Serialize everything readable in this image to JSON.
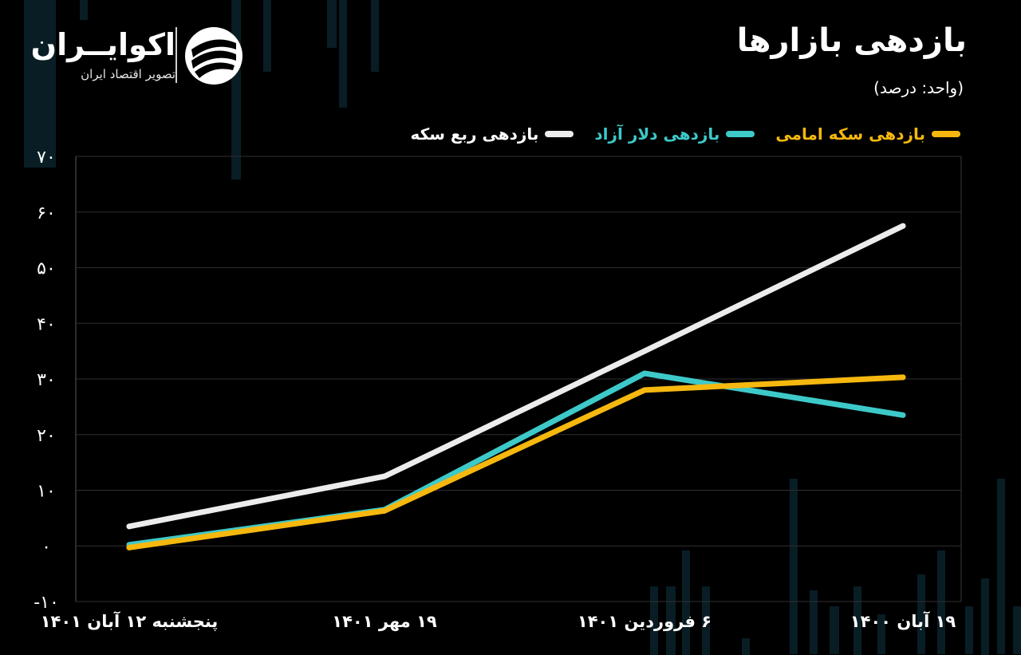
{
  "header": {
    "title": "بازدهی بازارها",
    "unit": "(واحد: درصد)"
  },
  "brand": {
    "name": "اکوایــران",
    "tagline": "تصویر اقتصاد ایران",
    "logo_icon": "ecoiran-logo-icon"
  },
  "colors": {
    "background": "#000000",
    "grid": "#2f2f2f",
    "axis_text": "#ffffff",
    "bg_bars": "#0d2a33"
  },
  "chart_data": {
    "type": "line",
    "categories": [
      "پنجشنبه ۱۲ آبان ۱۴۰۱",
      "۱۹ مهر ۱۴۰۱",
      "۶ فروردین ۱۴۰۱",
      "۱۹ آبان ۱۴۰۰"
    ],
    "y_ticks": [
      "-۱۰",
      "۰",
      "۱۰",
      "۲۰",
      "۳۰",
      "۴۰",
      "۵۰",
      "۶۰",
      "۷۰"
    ],
    "ylim": [
      -10,
      70
    ],
    "grid": true,
    "legend_position": "top-right",
    "series": [
      {
        "name": "بازدهی ربع سکه",
        "color": "#ececec",
        "values": [
          3.5,
          12.5,
          35,
          57.5
        ]
      },
      {
        "name": "بازدهی دلار آزاد",
        "color": "#3ec9c9",
        "values": [
          0.2,
          6.5,
          31,
          23.5
        ]
      },
      {
        "name": "بازدهی سکه امامی",
        "color": "#f6b80f",
        "values": [
          -0.3,
          6.3,
          28,
          30.3
        ]
      }
    ]
  }
}
